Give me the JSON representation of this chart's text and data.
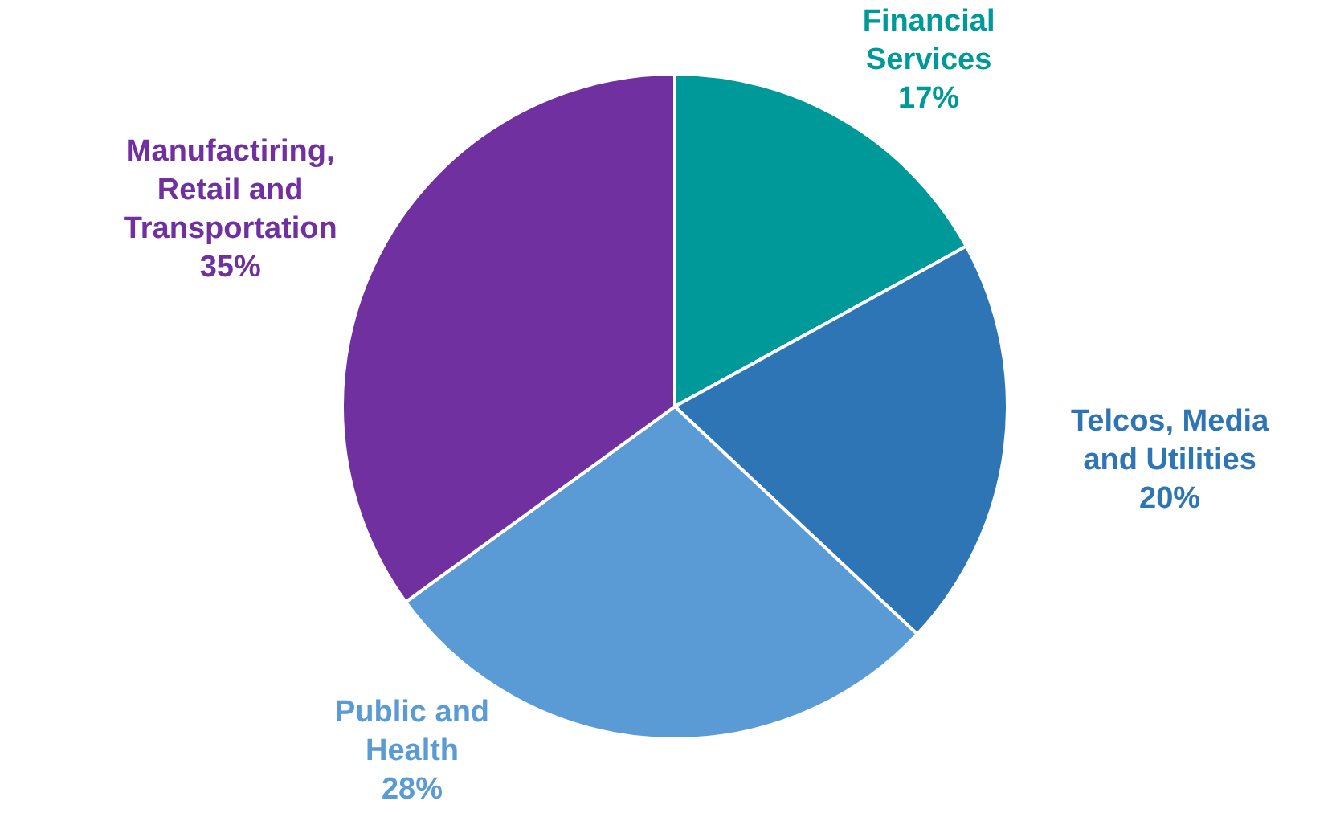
{
  "chart_data": {
    "type": "pie",
    "categories": [
      "Financial Services",
      "Telcos, Media and Utilities",
      "Public and Health",
      "Manufactiring, Retail and Transportation"
    ],
    "values": [
      17,
      20,
      28,
      35
    ],
    "colors": [
      "#009999",
      "#2e75b6",
      "#5b9bd5",
      "#7030a0"
    ],
    "value_labels": [
      "17%",
      "20%",
      "28%",
      "35%"
    ],
    "legend": false
  }
}
